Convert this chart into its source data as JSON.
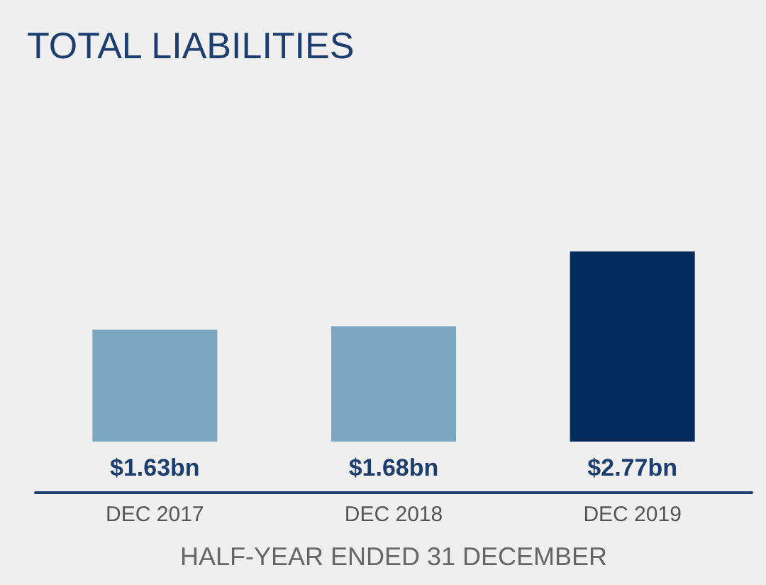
{
  "chart_data": {
    "type": "bar",
    "title": "TOTAL LIABILITIES",
    "xlabel": "HALF-YEAR ENDED 31 DECEMBER",
    "categories": [
      "DEC 2017",
      "DEC 2018",
      "DEC 2019"
    ],
    "values": [
      1.63,
      1.68,
      2.77
    ],
    "colors": [
      "#7ba7c0",
      "#7ba7c0",
      "#002b5c"
    ],
    "value_labels": [
      "$1.63bn",
      "$1.68bn",
      "$2.77bn"
    ]
  }
}
